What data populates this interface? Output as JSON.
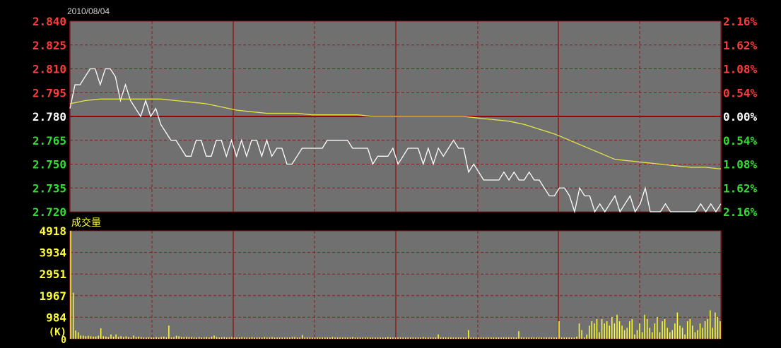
{
  "date": "2010/08/04",
  "price_panel": {
    "prev_close": "2.780",
    "left_labels": [
      "2.840",
      "2.825",
      "2.810",
      "2.795",
      "2.780",
      "2.765",
      "2.750",
      "2.735",
      "2.720"
    ],
    "right_labels": [
      "2.16%",
      "1.62%",
      "1.08%",
      "0.54%",
      "0.00%",
      "0.54%",
      "1.08%",
      "1.62%",
      "2.16%"
    ],
    "colors": {
      "up": "#ff3c3c",
      "flat": "#ffffff",
      "down": "#33dd33"
    }
  },
  "volume_panel": {
    "title": "成交量",
    "left_labels": [
      "4918",
      "3934",
      "2951",
      "1967",
      "984"
    ],
    "unit_label": "(K)",
    "zero_label": "0",
    "color": "#ffff33"
  },
  "chart_data": [
    {
      "type": "line",
      "title": "",
      "ylim": [
        2.72,
        2.84
      ],
      "grid": true,
      "series": [
        {
          "color": "#ffffff",
          "values": [
            2.785,
            2.8,
            2.8,
            2.805,
            2.81,
            2.81,
            2.8,
            2.81,
            2.81,
            2.805,
            2.79,
            2.8,
            2.79,
            2.785,
            2.78,
            2.79,
            2.78,
            2.785,
            2.775,
            2.77,
            2.765,
            2.765,
            2.76,
            2.755,
            2.755,
            2.765,
            2.765,
            2.755,
            2.755,
            2.765,
            2.765,
            2.755,
            2.765,
            2.755,
            2.765,
            2.755,
            2.765,
            2.765,
            2.755,
            2.765,
            2.755,
            2.76,
            2.76,
            2.75,
            2.75,
            2.755,
            2.76,
            2.76,
            2.76,
            2.76,
            2.76,
            2.765,
            2.765,
            2.765,
            2.765,
            2.765,
            2.76,
            2.76,
            2.76,
            2.76,
            2.75,
            2.755,
            2.755,
            2.755,
            2.76,
            2.75,
            2.755,
            2.76,
            2.76,
            2.76,
            2.75,
            2.76,
            2.75,
            2.76,
            2.755,
            2.76,
            2.765,
            2.76,
            2.76,
            2.745,
            2.75,
            2.745,
            2.74,
            2.74,
            2.74,
            2.74,
            2.745,
            2.74,
            2.745,
            2.74,
            2.74,
            2.745,
            2.74,
            2.74,
            2.735,
            2.73,
            2.73,
            2.735,
            2.735,
            2.73,
            2.72,
            2.735,
            2.73,
            2.73,
            2.72,
            2.725,
            2.72,
            2.725,
            2.73,
            2.72,
            2.725,
            2.73,
            2.72,
            2.725,
            2.735,
            2.72,
            2.72,
            2.72,
            2.725,
            2.72,
            2.72,
            2.72,
            2.72,
            2.72,
            2.72,
            2.725,
            2.72,
            2.725,
            2.72,
            2.725
          ]
        },
        {
          "color": "#e6e64a",
          "values": [
            2.788,
            2.79,
            2.791,
            2.791,
            2.791,
            2.791,
            2.791,
            2.79,
            2.789,
            2.788,
            2.786,
            2.784,
            2.783,
            2.782,
            2.782,
            2.782,
            2.781,
            2.781,
            2.781,
            2.781,
            2.78,
            2.78,
            2.78,
            2.78,
            2.78,
            2.78,
            2.78,
            2.779,
            2.778,
            2.777,
            2.775,
            2.772,
            2.769,
            2.765,
            2.761,
            2.757,
            2.753,
            2.752,
            2.751,
            2.75,
            2.749,
            2.748,
            2.748,
            2.747
          ]
        }
      ]
    },
    {
      "type": "bar",
      "title": "成交量",
      "ylim": [
        0,
        4918
      ],
      "grid": true,
      "series": [
        {
          "color": "#ffff33",
          "values": [
            4918,
            2100,
            380,
            300,
            150,
            140,
            120,
            140,
            120,
            100,
            100,
            140,
            480,
            120,
            100,
            80,
            200,
            100,
            200,
            90,
            120,
            80,
            110,
            80,
            60,
            150,
            80,
            100,
            80,
            60,
            60,
            70,
            60,
            60,
            80,
            60,
            80,
            100,
            70,
            600,
            60,
            80,
            140,
            120,
            80,
            80,
            90,
            80,
            80,
            60,
            60,
            80,
            60,
            70,
            80,
            60,
            100,
            150,
            80,
            60,
            70,
            80,
            60,
            60,
            80,
            60,
            70,
            60,
            80,
            60,
            60,
            60,
            80,
            60,
            60,
            60,
            60,
            80,
            60,
            60,
            80,
            60,
            60,
            60,
            60,
            60,
            60,
            60,
            80,
            80,
            60,
            60,
            180,
            60,
            60,
            60,
            60,
            60,
            60,
            60,
            60,
            60,
            60,
            60,
            80,
            60,
            60,
            60,
            60,
            60,
            60,
            60,
            80,
            60,
            60,
            60,
            60,
            60,
            60,
            60,
            60,
            60,
            60,
            60,
            60,
            60,
            80,
            60,
            60,
            60,
            60,
            60,
            60,
            60,
            60,
            60,
            60,
            60,
            60,
            60,
            80,
            60,
            60,
            60,
            60,
            60,
            200,
            60,
            60,
            60,
            60,
            60,
            60,
            60,
            60,
            60,
            60,
            60,
            400,
            60,
            60,
            60,
            60,
            60,
            60,
            60,
            60,
            60,
            60,
            60,
            60,
            60,
            60,
            60,
            60,
            60,
            60,
            60,
            350,
            60,
            60,
            60,
            60,
            60,
            60,
            60,
            60,
            60,
            60,
            60,
            60,
            60,
            60,
            60,
            800,
            60,
            60,
            60,
            60,
            60,
            60,
            100,
            700,
            400,
            60,
            200,
            600,
            800,
            700,
            900,
            300,
            900,
            700,
            800,
            600,
            1000,
            700,
            1100,
            800,
            600,
            400,
            500,
            800,
            900,
            200,
            400,
            700,
            300,
            1100,
            900,
            500,
            300,
            700,
            1000,
            300,
            800,
            900,
            500,
            300,
            400,
            700,
            1200,
            600,
            500,
            200,
            800,
            900,
            600,
            300,
            400,
            700,
            500,
            800,
            900,
            1300,
            500,
            1200,
            1000,
            800
          ]
        }
      ]
    }
  ]
}
